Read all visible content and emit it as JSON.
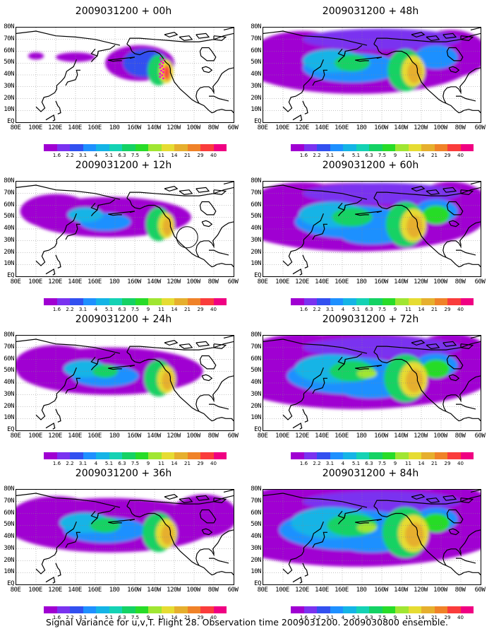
{
  "panels": [
    {
      "title": "2009031200 + 00h",
      "stage": 0
    },
    {
      "title": "2009031200 + 48h",
      "stage": 4
    },
    {
      "title": "2009031200 + 12h",
      "stage": 1
    },
    {
      "title": "2009031200 + 60h",
      "stage": 5
    },
    {
      "title": "2009031200 + 24h",
      "stage": 2
    },
    {
      "title": "2009031200 + 72h",
      "stage": 6
    },
    {
      "title": "2009031200 + 36h",
      "stage": 3
    },
    {
      "title": "2009031200 + 84h",
      "stage": 7
    }
  ],
  "lat_labels": [
    "80N",
    "70N",
    "60N",
    "50N",
    "40N",
    "30N",
    "20N",
    "10N",
    "EQ"
  ],
  "lon_labels": [
    "80E",
    "100E",
    "120E",
    "140E",
    "160E",
    "180",
    "160W",
    "140W",
    "120W",
    "100W",
    "80W",
    "60W"
  ],
  "colorbar": {
    "levels": [
      "1.6",
      "2.2",
      "3.1",
      "4",
      "5.1",
      "6.3",
      "7.5",
      "9",
      "11",
      "14",
      "21",
      "29",
      "40"
    ],
    "colors": [
      "#a000d2",
      "#7a32f0",
      "#3250f0",
      "#1e90ff",
      "#14b4e6",
      "#14d2b4",
      "#14d264",
      "#28dc28",
      "#a0e632",
      "#e6dc32",
      "#e6af2d",
      "#f08228",
      "#fa3c3c",
      "#f00082"
    ]
  },
  "caption": "Signal Variance for u,v,T. Flight 28. Observation time 2009031200. 2009030800 ensemble."
}
